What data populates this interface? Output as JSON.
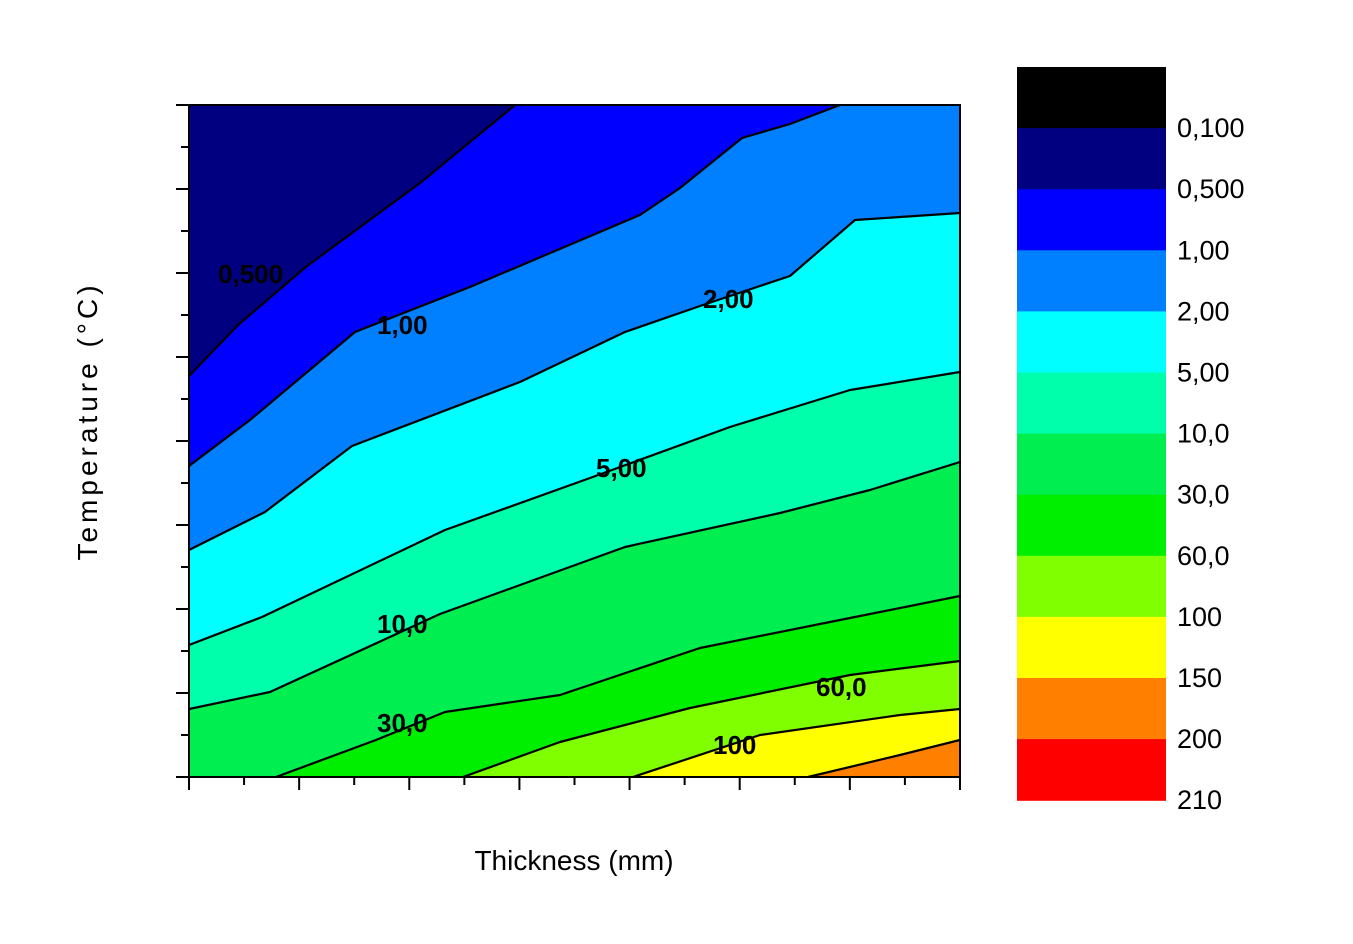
{
  "chart_data": {
    "type": "contour",
    "title": "",
    "xlabel": "Thickness (mm)",
    "ylabel": "Temperature (°C)",
    "x_ticks": "unlabeled",
    "y_ticks": "unlabeled",
    "levels": [
      {
        "value": "0,100",
        "color": "#000000"
      },
      {
        "value": "0,500",
        "color": "#000080"
      },
      {
        "value": "1,00",
        "color": "#0000ff"
      },
      {
        "value": "2,00",
        "color": "#0080ff"
      },
      {
        "value": "5,00",
        "color": "#00ffff"
      },
      {
        "value": "10,0",
        "color": "#00ffaa"
      },
      {
        "value": "30,0",
        "color": "#00ee50"
      },
      {
        "value": "60,0",
        "color": "#00ee00"
      },
      {
        "value": "100",
        "color": "#80ff00"
      },
      {
        "value": "150",
        "color": "#ffff00"
      },
      {
        "value": "200",
        "color": "#ff8000"
      },
      {
        "value": "210",
        "color": "#ff0000"
      }
    ],
    "legend_top_color": "#000000",
    "contour_labels": [
      "0,500",
      "1,00",
      "2,00",
      "5,00",
      "10,0",
      "30,0",
      "60,0",
      "100"
    ]
  }
}
